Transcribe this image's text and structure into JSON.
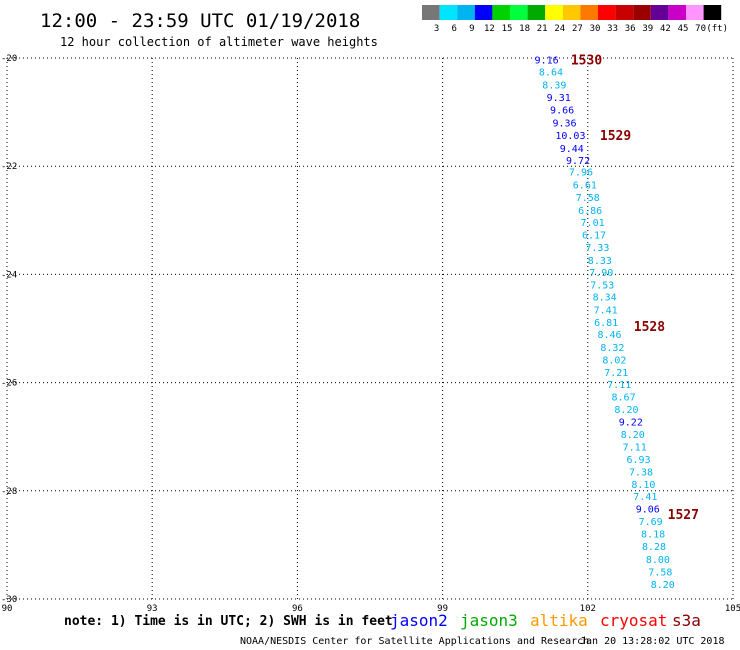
{
  "header": {
    "title": "12:00 - 23:59 UTC 01/19/2018",
    "subtitle": "12 hour collection of altimeter wave heights"
  },
  "colorbar": {
    "colors": [
      "#777777",
      "#00e5ff",
      "#00b4f0",
      "#0000ff",
      "#00d200",
      "#00ff3c",
      "#00aa00",
      "#ffff00",
      "#ffc800",
      "#ff7800",
      "#ff0000",
      "#c80000",
      "#9b0000",
      "#640096",
      "#c800c8",
      "#ff96ff",
      "#000000"
    ],
    "labels": [
      "3",
      "6",
      "9",
      "12",
      "15",
      "18",
      "21",
      "24",
      "27",
      "30",
      "33",
      "36",
      "39",
      "42",
      "45",
      "70",
      "(ft)"
    ]
  },
  "chart_data": {
    "type": "scatter",
    "xlim": [
      90,
      105
    ],
    "ylim": [
      -30,
      -20
    ],
    "xticks": [
      "90",
      "93",
      "96",
      "99",
      "102",
      "105"
    ],
    "yticks": [
      "-20",
      "-22",
      "-24",
      "-26",
      "-28",
      "-30"
    ],
    "grid": true,
    "points": [
      {
        "x": 100.9,
        "y": -20.03,
        "v": "9.16",
        "c": "#0000ff"
      },
      {
        "x": 100.99,
        "y": -20.25,
        "v": "8.64",
        "c": "#00b4f0"
      },
      {
        "x": 101.06,
        "y": -20.49,
        "v": "8.39",
        "c": "#00b4f0"
      },
      {
        "x": 101.15,
        "y": -20.72,
        "v": "9.31",
        "c": "#0000ff"
      },
      {
        "x": 101.22,
        "y": -20.95,
        "v": "9.66",
        "c": "#0000ff"
      },
      {
        "x": 101.27,
        "y": -21.19,
        "v": "9.36",
        "c": "#0000ff"
      },
      {
        "x": 101.33,
        "y": -21.42,
        "v": "10.03",
        "c": "#0000ff"
      },
      {
        "x": 101.42,
        "y": -21.66,
        "v": "9.44",
        "c": "#0000ff"
      },
      {
        "x": 101.55,
        "y": -21.89,
        "v": "9.72",
        "c": "#0000ff"
      },
      {
        "x": 101.61,
        "y": -22.1,
        "v": "7.96",
        "c": "#00b4f0"
      },
      {
        "x": 101.69,
        "y": -22.34,
        "v": "6.61",
        "c": "#00b4f0"
      },
      {
        "x": 101.75,
        "y": -22.57,
        "v": "7.58",
        "c": "#00b4f0"
      },
      {
        "x": 101.8,
        "y": -22.81,
        "v": "6.86",
        "c": "#00b4f0"
      },
      {
        "x": 101.85,
        "y": -23.03,
        "v": "7.01",
        "c": "#00b4f0"
      },
      {
        "x": 101.88,
        "y": -23.26,
        "v": "6.17",
        "c": "#00b4f0"
      },
      {
        "x": 101.95,
        "y": -23.49,
        "v": "7.33",
        "c": "#00b4f0"
      },
      {
        "x": 102.0,
        "y": -23.73,
        "v": "8.33",
        "c": "#00b4f0"
      },
      {
        "x": 102.03,
        "y": -23.96,
        "v": "7.90",
        "c": "#00b4f0"
      },
      {
        "x": 102.05,
        "y": -24.19,
        "v": "7.53",
        "c": "#00b4f0"
      },
      {
        "x": 102.1,
        "y": -24.41,
        "v": "8.34",
        "c": "#00b4f0"
      },
      {
        "x": 102.12,
        "y": -24.65,
        "v": "7.41",
        "c": "#00b4f0"
      },
      {
        "x": 102.13,
        "y": -24.88,
        "v": "6.81",
        "c": "#00b4f0"
      },
      {
        "x": 102.2,
        "y": -25.1,
        "v": "8.46",
        "c": "#00b4f0"
      },
      {
        "x": 102.26,
        "y": -25.34,
        "v": "8.32",
        "c": "#00b4f0"
      },
      {
        "x": 102.3,
        "y": -25.57,
        "v": "8.02",
        "c": "#00b4f0"
      },
      {
        "x": 102.34,
        "y": -25.8,
        "v": "7.21",
        "c": "#00b4f0"
      },
      {
        "x": 102.4,
        "y": -26.03,
        "v": "7.11",
        "c": "#00b4f0"
      },
      {
        "x": 102.49,
        "y": -26.26,
        "v": "8.67",
        "c": "#00b4f0"
      },
      {
        "x": 102.55,
        "y": -26.49,
        "v": "8.20",
        "c": "#00b4f0"
      },
      {
        "x": 102.64,
        "y": -26.72,
        "v": "9.22",
        "c": "#0000ff"
      },
      {
        "x": 102.68,
        "y": -26.95,
        "v": "8.20",
        "c": "#00b4f0"
      },
      {
        "x": 102.72,
        "y": -27.18,
        "v": "7.11",
        "c": "#00b4f0"
      },
      {
        "x": 102.8,
        "y": -27.41,
        "v": "6.93",
        "c": "#00b4f0"
      },
      {
        "x": 102.85,
        "y": -27.64,
        "v": "7.38",
        "c": "#00b4f0"
      },
      {
        "x": 102.9,
        "y": -27.87,
        "v": "8.10",
        "c": "#00b4f0"
      },
      {
        "x": 102.94,
        "y": -28.1,
        "v": "7.41",
        "c": "#00b4f0"
      },
      {
        "x": 102.99,
        "y": -28.33,
        "v": "9.06",
        "c": "#0000ff"
      },
      {
        "x": 103.05,
        "y": -28.56,
        "v": "7.69",
        "c": "#00b4f0"
      },
      {
        "x": 103.1,
        "y": -28.79,
        "v": "8.18",
        "c": "#00b4f0"
      },
      {
        "x": 103.12,
        "y": -29.02,
        "v": "8.28",
        "c": "#00b4f0"
      },
      {
        "x": 103.2,
        "y": -29.26,
        "v": "8.00",
        "c": "#00b4f0"
      },
      {
        "x": 103.25,
        "y": -29.49,
        "v": "7.58",
        "c": "#00b4f0"
      },
      {
        "x": 103.3,
        "y": -29.72,
        "v": "8.20",
        "c": "#00b4f0"
      }
    ],
    "pass_labels": [
      {
        "x": 101.65,
        "y": -20.03,
        "text": "1530"
      },
      {
        "x": 102.25,
        "y": -21.42,
        "text": "1529"
      },
      {
        "x": 102.95,
        "y": -24.95,
        "text": "1528"
      },
      {
        "x": 103.65,
        "y": -28.43,
        "text": "1527"
      }
    ],
    "pass_color": "#8b0000"
  },
  "footer": {
    "note": "note: 1) Time is in UTC; 2) SWH is in feet",
    "satellites": [
      {
        "name": "jason2",
        "color": "#0000ff"
      },
      {
        "name": "jason3",
        "color": "#00aa00"
      },
      {
        "name": "altika",
        "color": "#ff9900"
      },
      {
        "name": "cryosat",
        "color": "#ff0000"
      },
      {
        "name": "s3a",
        "color": "#8b0000"
      }
    ],
    "credit": "NOAA/NESDIS Center for Satellite Applications and Research",
    "generated": "Jan 20 13:28:02 UTC 2018"
  }
}
